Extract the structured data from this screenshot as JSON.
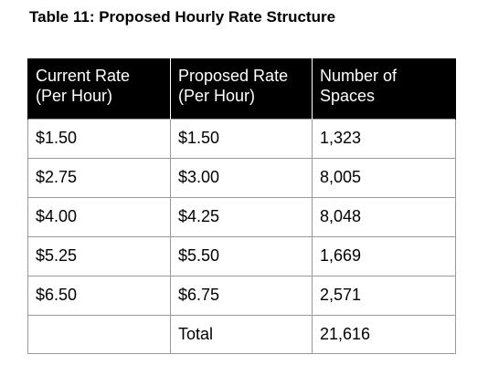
{
  "title": "Table 11: Proposed Hourly Rate Structure",
  "table": {
    "headers": [
      {
        "line1": "Current Rate",
        "line2": "(Per Hour)"
      },
      {
        "line1": "Proposed Rate",
        "line2": "(Per Hour)"
      },
      {
        "line1": "Number of",
        "line2": "Spaces"
      }
    ],
    "rows": [
      [
        "$1.50",
        "$1.50",
        "1,323"
      ],
      [
        "$2.75",
        "$3.00",
        "8,005"
      ],
      [
        "$4.00",
        "$4.25",
        "8,048"
      ],
      [
        "$5.25",
        "$5.50",
        "1,669"
      ],
      [
        "$6.50",
        "$6.75",
        "2,571"
      ],
      [
        "",
        "Total",
        "21,616"
      ]
    ]
  }
}
